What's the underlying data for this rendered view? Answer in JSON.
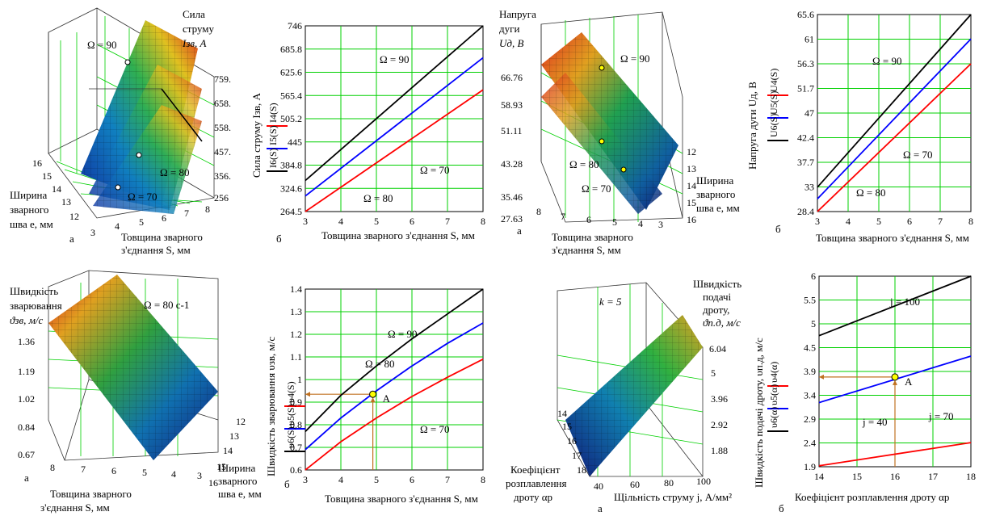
{
  "labels": {
    "a": "а",
    "b": "б",
    "current_title": [
      "Сила",
      "струму",
      "Iзв, А"
    ],
    "width_axis": [
      "Ширина",
      "зварного",
      "шва e, мм"
    ],
    "thickness_axis": [
      "Товщина зварного",
      "з'єднання S, мм"
    ],
    "thickness_axis_1line": "Товщина зварного з'єднання S, мм",
    "current_ylabel": "Сила струму Iзв, А",
    "voltage_title": [
      "Напруга",
      "дуги",
      "Uд, В"
    ],
    "voltage_ylabel": "Напруга дуги Uд, В",
    "speed_title": [
      "Швидкість",
      "зварювання",
      "ϑзв, м/с"
    ],
    "speed_ylabel": "Швидкість зварювання υзв, м/с",
    "omega80_c": "Ω = 80 с-1",
    "feed_title": [
      "Швидкість",
      "подачі",
      "дроту,",
      "ϑп.д, м/с"
    ],
    "feed_ylabel": "Швидкість подачі дроту, υп.д, м/с",
    "melt_axis": [
      "Коефіцієнт",
      "розплавлення",
      "дроту αp"
    ],
    "density_axis": "Щільність струму j, А/мм²",
    "melt_xlabel": "Коефіцієнт розплавлення дроту αp",
    "k5": "k = 5",
    "point_A": "A"
  },
  "legend": {
    "current": [
      "I4(S)",
      "I5(S)",
      "I6(S)"
    ],
    "voltage": [
      "U4(S)",
      "U5(S)",
      "U6(S)"
    ],
    "speed": [
      "υ4(S)",
      "υ5(S)",
      "υ6(S)"
    ],
    "feed": [
      "υ4(α)",
      "υ5(α)",
      "υ6(α)"
    ]
  },
  "surface_ticks": {
    "current_z": [
      "759.",
      "658.",
      "558.",
      "457.",
      "356.",
      "256"
    ],
    "current_x": [
      "3",
      "4",
      "5",
      "6",
      "7",
      "8"
    ],
    "current_y": [
      "16",
      "15",
      "14",
      "13",
      "12"
    ],
    "voltage_z": [
      "66.76",
      "58.93",
      "51.11",
      "43.28",
      "35.46",
      "27.63"
    ],
    "voltage_x": [
      "8",
      "7",
      "6",
      "5",
      "4",
      "3"
    ],
    "voltage_y": [
      "12",
      "13",
      "14",
      "15",
      "16"
    ],
    "speed_z": [
      "1.36",
      "1.19",
      "1.02",
      "0.84",
      "0.67"
    ],
    "speed_x": [
      "8",
      "7",
      "6",
      "5",
      "4",
      "3"
    ],
    "speed_y": [
      "12",
      "13",
      "14",
      "15",
      "16"
    ],
    "feed_z": [
      "6.04",
      "5",
      "3.96",
      "2.92",
      "1.88"
    ],
    "feed_x": [
      "40",
      "60",
      "80",
      "100"
    ],
    "feed_y": [
      "14",
      "15",
      "16",
      "17",
      "18"
    ]
  },
  "surface_annotations": {
    "current": [
      "Ω = 90",
      "Ω = 80",
      "Ω = 70"
    ],
    "voltage": [
      "Ω = 90",
      "Ω = 80",
      "Ω = 70"
    ]
  },
  "chart_data": [
    {
      "type": "line",
      "x": [
        3,
        8
      ],
      "ylim": [
        264.5,
        746
      ],
      "xticks": [
        3,
        4,
        5,
        6,
        7,
        8
      ],
      "yticks": [
        "264.5",
        "324.6",
        "384.8",
        "445",
        "505.2",
        "565.4",
        "625.6",
        "685.8",
        "746"
      ],
      "series": [
        {
          "name": "I4(S)",
          "color": "#ff0000",
          "x": [
            3,
            8
          ],
          "y": [
            264.5,
            580
          ]
        },
        {
          "name": "I5(S)",
          "color": "#0000ff",
          "x": [
            3,
            8
          ],
          "y": [
            305,
            663
          ]
        },
        {
          "name": "I6(S)",
          "color": "#000000",
          "x": [
            3,
            8
          ],
          "y": [
            345,
            746
          ]
        }
      ],
      "annotations": [
        "Ω = 90",
        "Ω = 70",
        "Ω = 80"
      ]
    },
    {
      "type": "line",
      "x": [
        3,
        8
      ],
      "ylim": [
        28.4,
        65.6
      ],
      "xticks": [
        3,
        4,
        5,
        6,
        7,
        8
      ],
      "yticks": [
        "28.4",
        "33",
        "37.7",
        "42.4",
        "47",
        "51.7",
        "56.3",
        "61",
        "65.6"
      ],
      "series": [
        {
          "name": "U4(S)",
          "color": "#ff0000",
          "x": [
            3,
            8
          ],
          "y": [
            28.4,
            56.3
          ]
        },
        {
          "name": "U5(S)",
          "color": "#0000ff",
          "x": [
            3,
            8
          ],
          "y": [
            30.8,
            61
          ]
        },
        {
          "name": "U6(S)",
          "color": "#000000",
          "x": [
            3,
            8
          ],
          "y": [
            33,
            65.6
          ]
        }
      ],
      "annotations": [
        "Ω = 90",
        "Ω = 70",
        "Ω = 80"
      ]
    },
    {
      "type": "line",
      "x": [
        3,
        8
      ],
      "ylim": [
        0.6,
        1.4
      ],
      "xticks": [
        3,
        4,
        5,
        6,
        7,
        8
      ],
      "yticks": [
        "0.6",
        "0.7",
        "0.8",
        "0.9",
        "1",
        "1.1",
        "1.2",
        "1.3",
        "1.4"
      ],
      "series": [
        {
          "name": "υ4(S)",
          "color": "#ff0000",
          "x": [
            3,
            4,
            5,
            6,
            7,
            8
          ],
          "y": [
            0.6,
            0.725,
            0.83,
            0.925,
            1.01,
            1.09
          ]
        },
        {
          "name": "υ5(S)",
          "color": "#0000ff",
          "x": [
            3,
            4,
            5,
            6,
            7,
            8
          ],
          "y": [
            0.69,
            0.83,
            0.95,
            1.06,
            1.16,
            1.25
          ]
        },
        {
          "name": "υ6(S)",
          "color": "#000000",
          "x": [
            3,
            4,
            5,
            6,
            7,
            8
          ],
          "y": [
            0.77,
            0.93,
            1.06,
            1.18,
            1.29,
            1.4
          ]
        }
      ],
      "annotations": [
        "Ω = 90",
        "Ω = 80",
        "Ω = 70"
      ],
      "marker": {
        "label": "A",
        "x": 4.9,
        "y": 0.935
      }
    },
    {
      "type": "line",
      "x": [
        14,
        18
      ],
      "ylim": [
        1.9,
        6
      ],
      "xticks": [
        14,
        15,
        16,
        17,
        18
      ],
      "yticks": [
        "1.9",
        "2.4",
        "2.9",
        "3.4",
        "3.9",
        "4.5",
        "5",
        "5.5",
        "6"
      ],
      "series": [
        {
          "name": "υ4(α)",
          "color": "#ff0000",
          "x": [
            14,
            18
          ],
          "y": [
            1.92,
            2.42
          ]
        },
        {
          "name": "υ5(α)",
          "color": "#0000ff",
          "x": [
            14,
            18
          ],
          "y": [
            3.28,
            4.28
          ]
        },
        {
          "name": "υ6(α)",
          "color": "#000000",
          "x": [
            14,
            18
          ],
          "y": [
            4.72,
            6.0
          ]
        }
      ],
      "annotations": [
        "j = 100",
        "j = 70",
        "j = 40"
      ],
      "marker": {
        "label": "A",
        "x": 16,
        "y": 3.83
      }
    }
  ]
}
